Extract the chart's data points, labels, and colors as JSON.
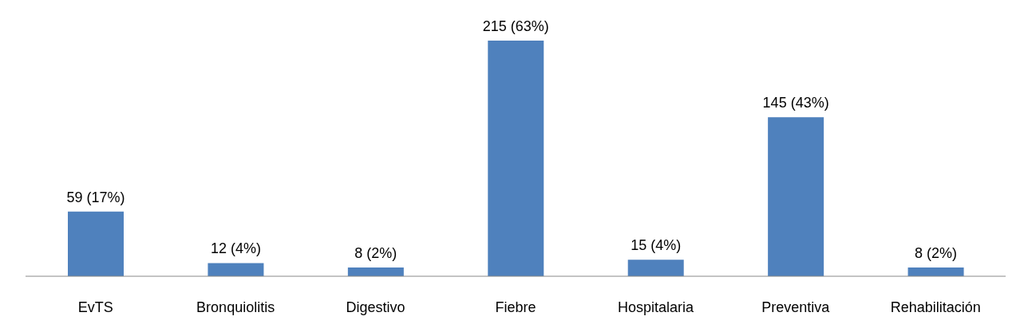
{
  "chart_data": {
    "type": "bar",
    "categories": [
      "EvTS",
      "Bronquiolitis",
      "Digestivo",
      "Fiebre",
      "Hospitalaria",
      "Preventiva",
      "Rehabilitación"
    ],
    "values": [
      59,
      12,
      8,
      215,
      15,
      145,
      8
    ],
    "value_labels": [
      "59 (17%)",
      "12 (4%)",
      "8 (2%)",
      "215 (63%)",
      "15 (4%)",
      "145 (43%)",
      "8 (2%)"
    ],
    "color": "#4f81bd",
    "grid": false,
    "legend": false
  }
}
